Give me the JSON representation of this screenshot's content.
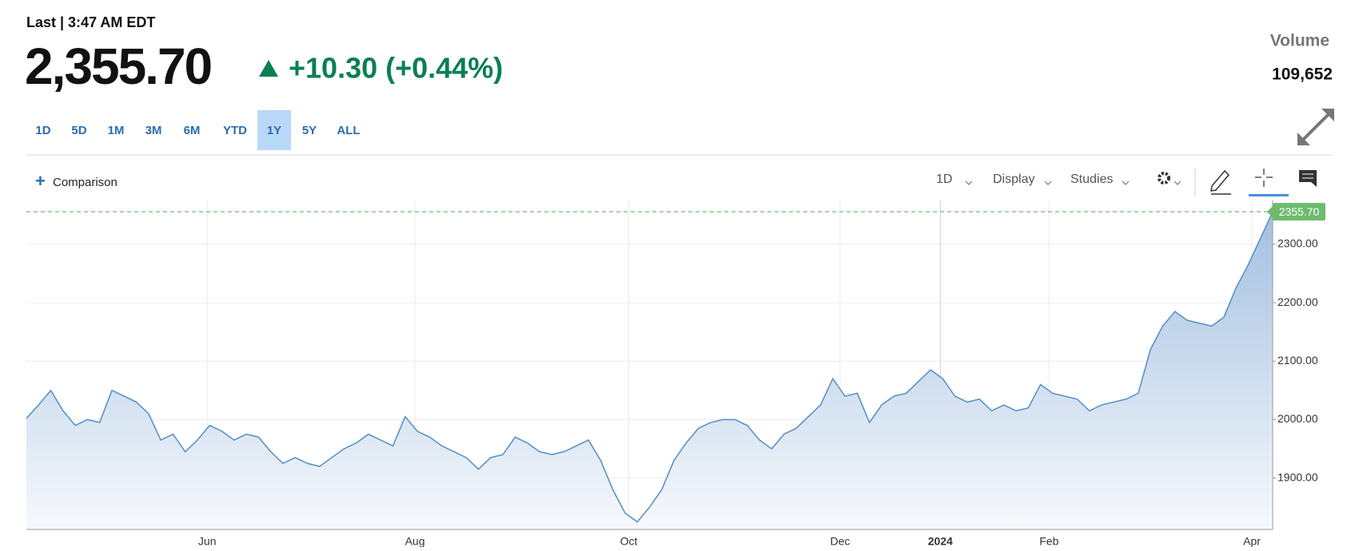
{
  "header": {
    "last_time": "Last | 3:47 AM EDT",
    "price": "2,355.70",
    "change": "+10.30 (+0.44%)",
    "volume_label": "Volume",
    "volume": "109,652"
  },
  "ranges": [
    "1D",
    "5D",
    "1M",
    "3M",
    "6M",
    "YTD",
    "1Y",
    "5Y",
    "ALL"
  ],
  "active_range": 6,
  "toolbar": {
    "comparison": "Comparison",
    "interval": "1D",
    "display": "Display",
    "studies": "Studies"
  },
  "chart_data": {
    "type": "area",
    "values": [
      2002,
      2025,
      2050,
      2015,
      1990,
      2000,
      1995,
      2050,
      2040,
      2030,
      2010,
      1965,
      1975,
      1945,
      1965,
      1990,
      1980,
      1965,
      1975,
      1970,
      1945,
      1925,
      1935,
      1925,
      1920,
      1935,
      1950,
      1960,
      1975,
      1965,
      1955,
      2005,
      1980,
      1970,
      1955,
      1945,
      1935,
      1915,
      1935,
      1940,
      1970,
      1960,
      1945,
      1940,
      1945,
      1955,
      1965,
      1930,
      1880,
      1840,
      1825,
      1850,
      1880,
      1930,
      1960,
      1985,
      1995,
      2000,
      2000,
      1990,
      1965,
      1950,
      1975,
      1985,
      2005,
      2025,
      2070,
      2040,
      2045,
      1995,
      2025,
      2040,
      2045,
      2065,
      2085,
      2070,
      2040,
      2030,
      2035,
      2015,
      2025,
      2015,
      2020,
      2060,
      2045,
      2040,
      2035,
      2015,
      2025,
      2030,
      2035,
      2045,
      2120,
      2160,
      2185,
      2170,
      2165,
      2160,
      2175,
      2225,
      2265,
      2310,
      2355.7
    ],
    "color": "#5b93c7",
    "xlim": [
      0,
      102
    ],
    "xticks": [
      {
        "value": 14.8,
        "label": "Jun"
      },
      {
        "value": 31.8,
        "label": "Aug"
      },
      {
        "value": 49.3,
        "label": "Oct"
      },
      {
        "value": 66.6,
        "label": "Dec"
      },
      {
        "value": 74.8,
        "label": "2024"
      },
      {
        "value": 83.7,
        "label": "Feb"
      },
      {
        "value": 100.3,
        "label": "Apr"
      }
    ],
    "ylim": [
      1812,
      2375
    ],
    "yticks": [
      {
        "value": 1900,
        "label": "1900.00"
      },
      {
        "value": 2000,
        "label": "2000.00"
      },
      {
        "value": 2100,
        "label": "2100.00"
      },
      {
        "value": 2200,
        "label": "2200.00"
      },
      {
        "value": 2300,
        "label": "2300.00"
      }
    ],
    "grid": true,
    "last_price": {
      "value": 2355.7,
      "label": "2355.70",
      "color": "#6dbb6d"
    }
  }
}
